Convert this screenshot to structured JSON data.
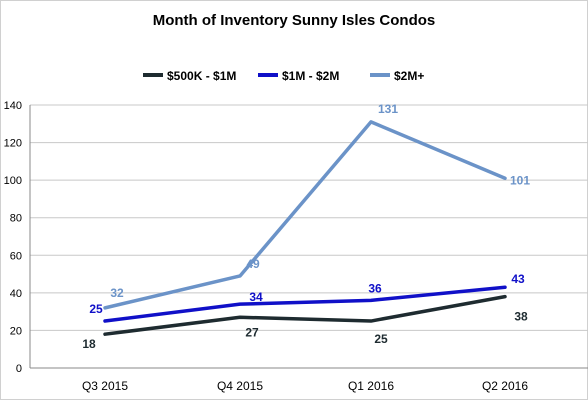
{
  "chart_data": {
    "type": "line",
    "title": "Month of Inventory Sunny Isles Condos",
    "xlabel": "",
    "ylabel": "",
    "categories": [
      "Q3 2015",
      "Q4 2015",
      "Q1 2016",
      "Q2 2016"
    ],
    "ylim": [
      0,
      140
    ],
    "yticks": [
      0,
      20,
      40,
      60,
      80,
      100,
      120,
      140
    ],
    "grid": true,
    "legend_position": "top",
    "series": [
      {
        "name": "$500K - $1M",
        "values": [
          18,
          27,
          25,
          38
        ],
        "color": "#1e2b30"
      },
      {
        "name": "$1M - $2M",
        "values": [
          25,
          34,
          36,
          43
        ],
        "color": "#1010c8"
      },
      {
        "name": "$2M+",
        "values": [
          32,
          49,
          131,
          101
        ],
        "color": "#6b93c8"
      }
    ]
  }
}
